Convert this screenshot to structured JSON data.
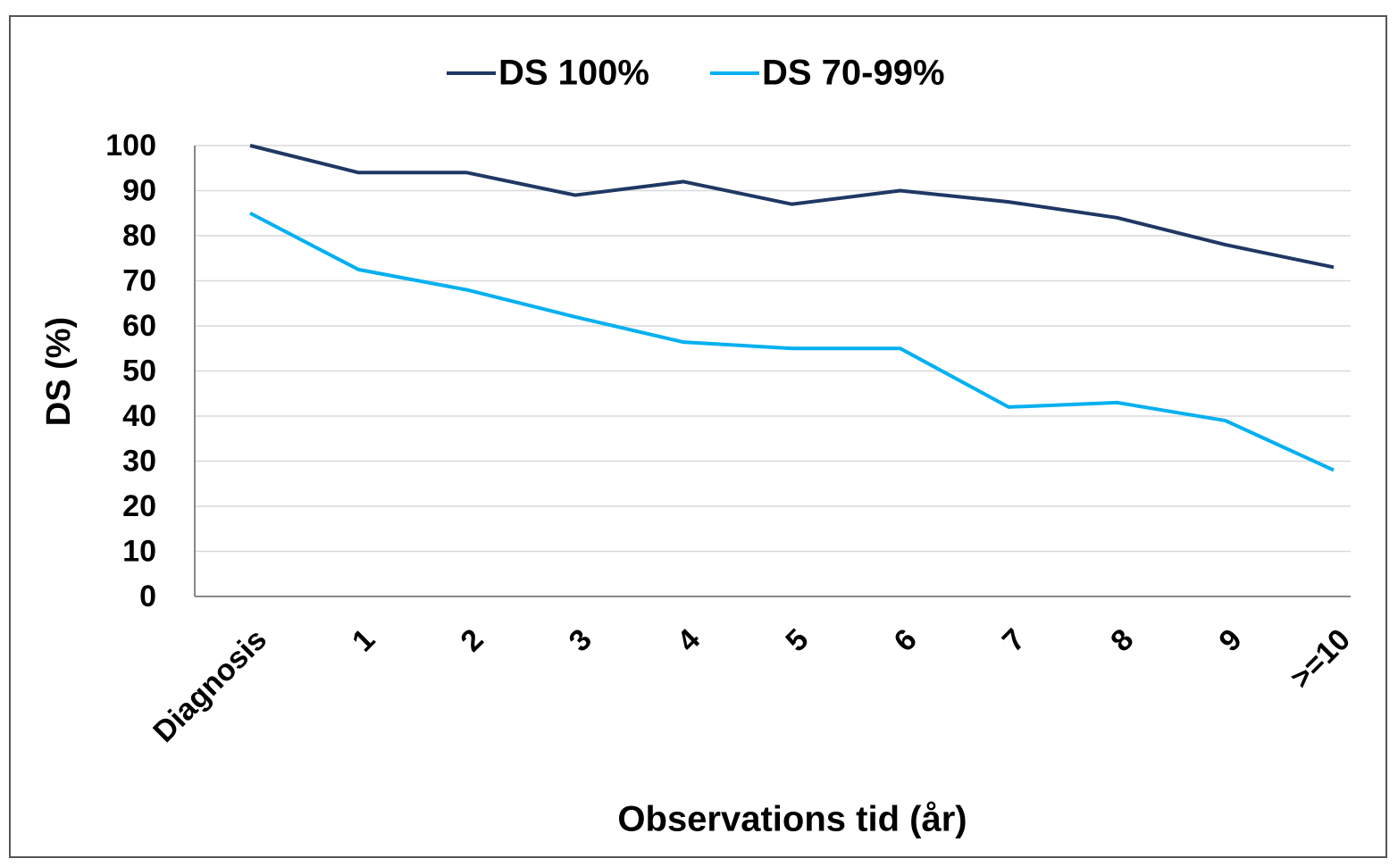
{
  "chart_data": {
    "type": "line",
    "categories": [
      "Diagnosis",
      "1",
      "2",
      "3",
      "4",
      "5",
      "6",
      "7",
      "8",
      "9",
      ">=10"
    ],
    "series": [
      {
        "name": "DS 100%",
        "color": "#1f3864",
        "values": [
          100,
          94,
          94,
          89,
          92,
          87,
          90,
          87.5,
          84,
          78,
          73
        ]
      },
      {
        "name": "DS 70-99%",
        "color": "#00b0f0",
        "values": [
          85,
          72.5,
          68,
          62,
          56.4,
          55,
          55,
          42,
          43,
          39,
          28
        ]
      }
    ],
    "y_label": "DS (%)",
    "x_label": "Observations tid  (år)",
    "ylim": [
      0,
      100
    ],
    "yticks": [
      0,
      10,
      20,
      30,
      40,
      50,
      60,
      70,
      80,
      90,
      100
    ],
    "grid": true,
    "legend": "top"
  }
}
